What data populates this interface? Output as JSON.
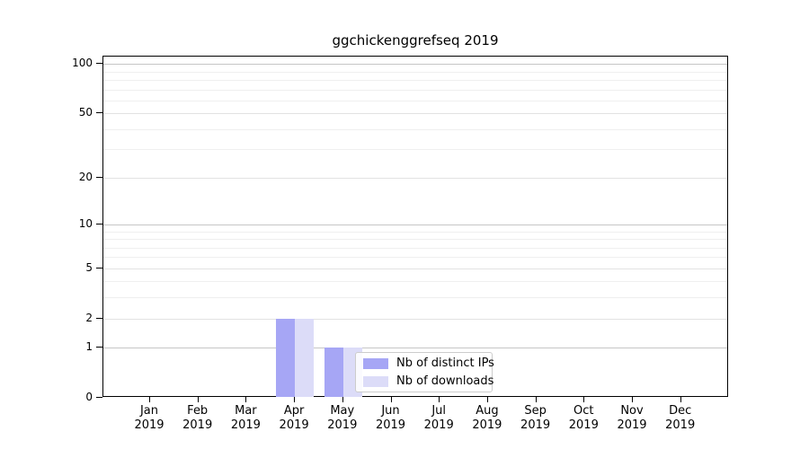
{
  "title": "ggchickenggrefseq 2019",
  "colors": {
    "ips_bar": "#a6a6f5",
    "downloads_bar": "#dcdcf8",
    "grid_power": "#c6c6c6",
    "grid_labeled": "#e2e2e2",
    "grid_minor": "#efefef",
    "axis": "#000000"
  },
  "legend": {
    "items": [
      {
        "label": "Nb of distinct IPs",
        "color": "#a6a6f5"
      },
      {
        "label": "Nb of downloads",
        "color": "#dcdcf8"
      }
    ]
  },
  "y_axis": {
    "tick_labels": [
      "0",
      "1",
      "2",
      "5",
      "10",
      "20",
      "50",
      "100"
    ]
  },
  "x_axis": {
    "tick_labels": [
      {
        "month": "Jan",
        "year": "2019"
      },
      {
        "month": "Feb",
        "year": "2019"
      },
      {
        "month": "Mar",
        "year": "2019"
      },
      {
        "month": "Apr",
        "year": "2019"
      },
      {
        "month": "May",
        "year": "2019"
      },
      {
        "month": "Jun",
        "year": "2019"
      },
      {
        "month": "Jul",
        "year": "2019"
      },
      {
        "month": "Aug",
        "year": "2019"
      },
      {
        "month": "Sep",
        "year": "2019"
      },
      {
        "month": "Oct",
        "year": "2019"
      },
      {
        "month": "Nov",
        "year": "2019"
      },
      {
        "month": "Dec",
        "year": "2019"
      }
    ]
  },
  "chart_data": {
    "type": "bar",
    "title": "ggchickenggrefseq 2019",
    "categories": [
      "Jan 2019",
      "Feb 2019",
      "Mar 2019",
      "Apr 2019",
      "May 2019",
      "Jun 2019",
      "Jul 2019",
      "Aug 2019",
      "Sep 2019",
      "Oct 2019",
      "Nov 2019",
      "Dec 2019"
    ],
    "series": [
      {
        "name": "Nb of distinct IPs",
        "color": "#a6a6f5",
        "values": [
          0,
          0,
          0,
          2,
          1,
          0,
          0,
          0,
          0,
          0,
          0,
          0
        ]
      },
      {
        "name": "Nb of downloads",
        "color": "#dcdcf8",
        "values": [
          0,
          0,
          0,
          2,
          1,
          0,
          0,
          0,
          0,
          0,
          0,
          0
        ]
      }
    ],
    "xlabel": "",
    "ylabel": "",
    "yscale": "log1p",
    "ylim": [
      0,
      110
    ],
    "y_ticks": [
      0,
      1,
      2,
      5,
      10,
      20,
      50,
      100
    ],
    "y_minor_gridlines": [
      3,
      4,
      6,
      7,
      8,
      9,
      30,
      40,
      60,
      70,
      80,
      90
    ],
    "grid": true,
    "legend_position": "lower center-right inside plot"
  }
}
